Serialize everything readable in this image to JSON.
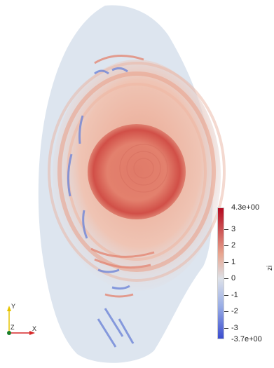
{
  "colorbar": {
    "title": "zi",
    "max_label": "4.3e+00",
    "min_label": "-3.7e+00",
    "min": -3.7,
    "max": 4.3,
    "ticks": [
      "3",
      "2",
      "1",
      "0",
      "-1",
      "-2",
      "-3"
    ],
    "tick_values": [
      3,
      2,
      1,
      0,
      -1,
      -2,
      -3
    ],
    "colors": {
      "high": "#b4091f",
      "mid": "#dde1e8",
      "low": "#3a4ccf"
    }
  },
  "orientation_axes": {
    "x_label": "X",
    "y_label": "Y",
    "z_label": "Z",
    "colors": {
      "x": "#d62728",
      "y": "#e6c300",
      "z": "#1a7f2a"
    }
  },
  "plot": {
    "background": "#dde5ef",
    "core_color": "#e07062"
  }
}
